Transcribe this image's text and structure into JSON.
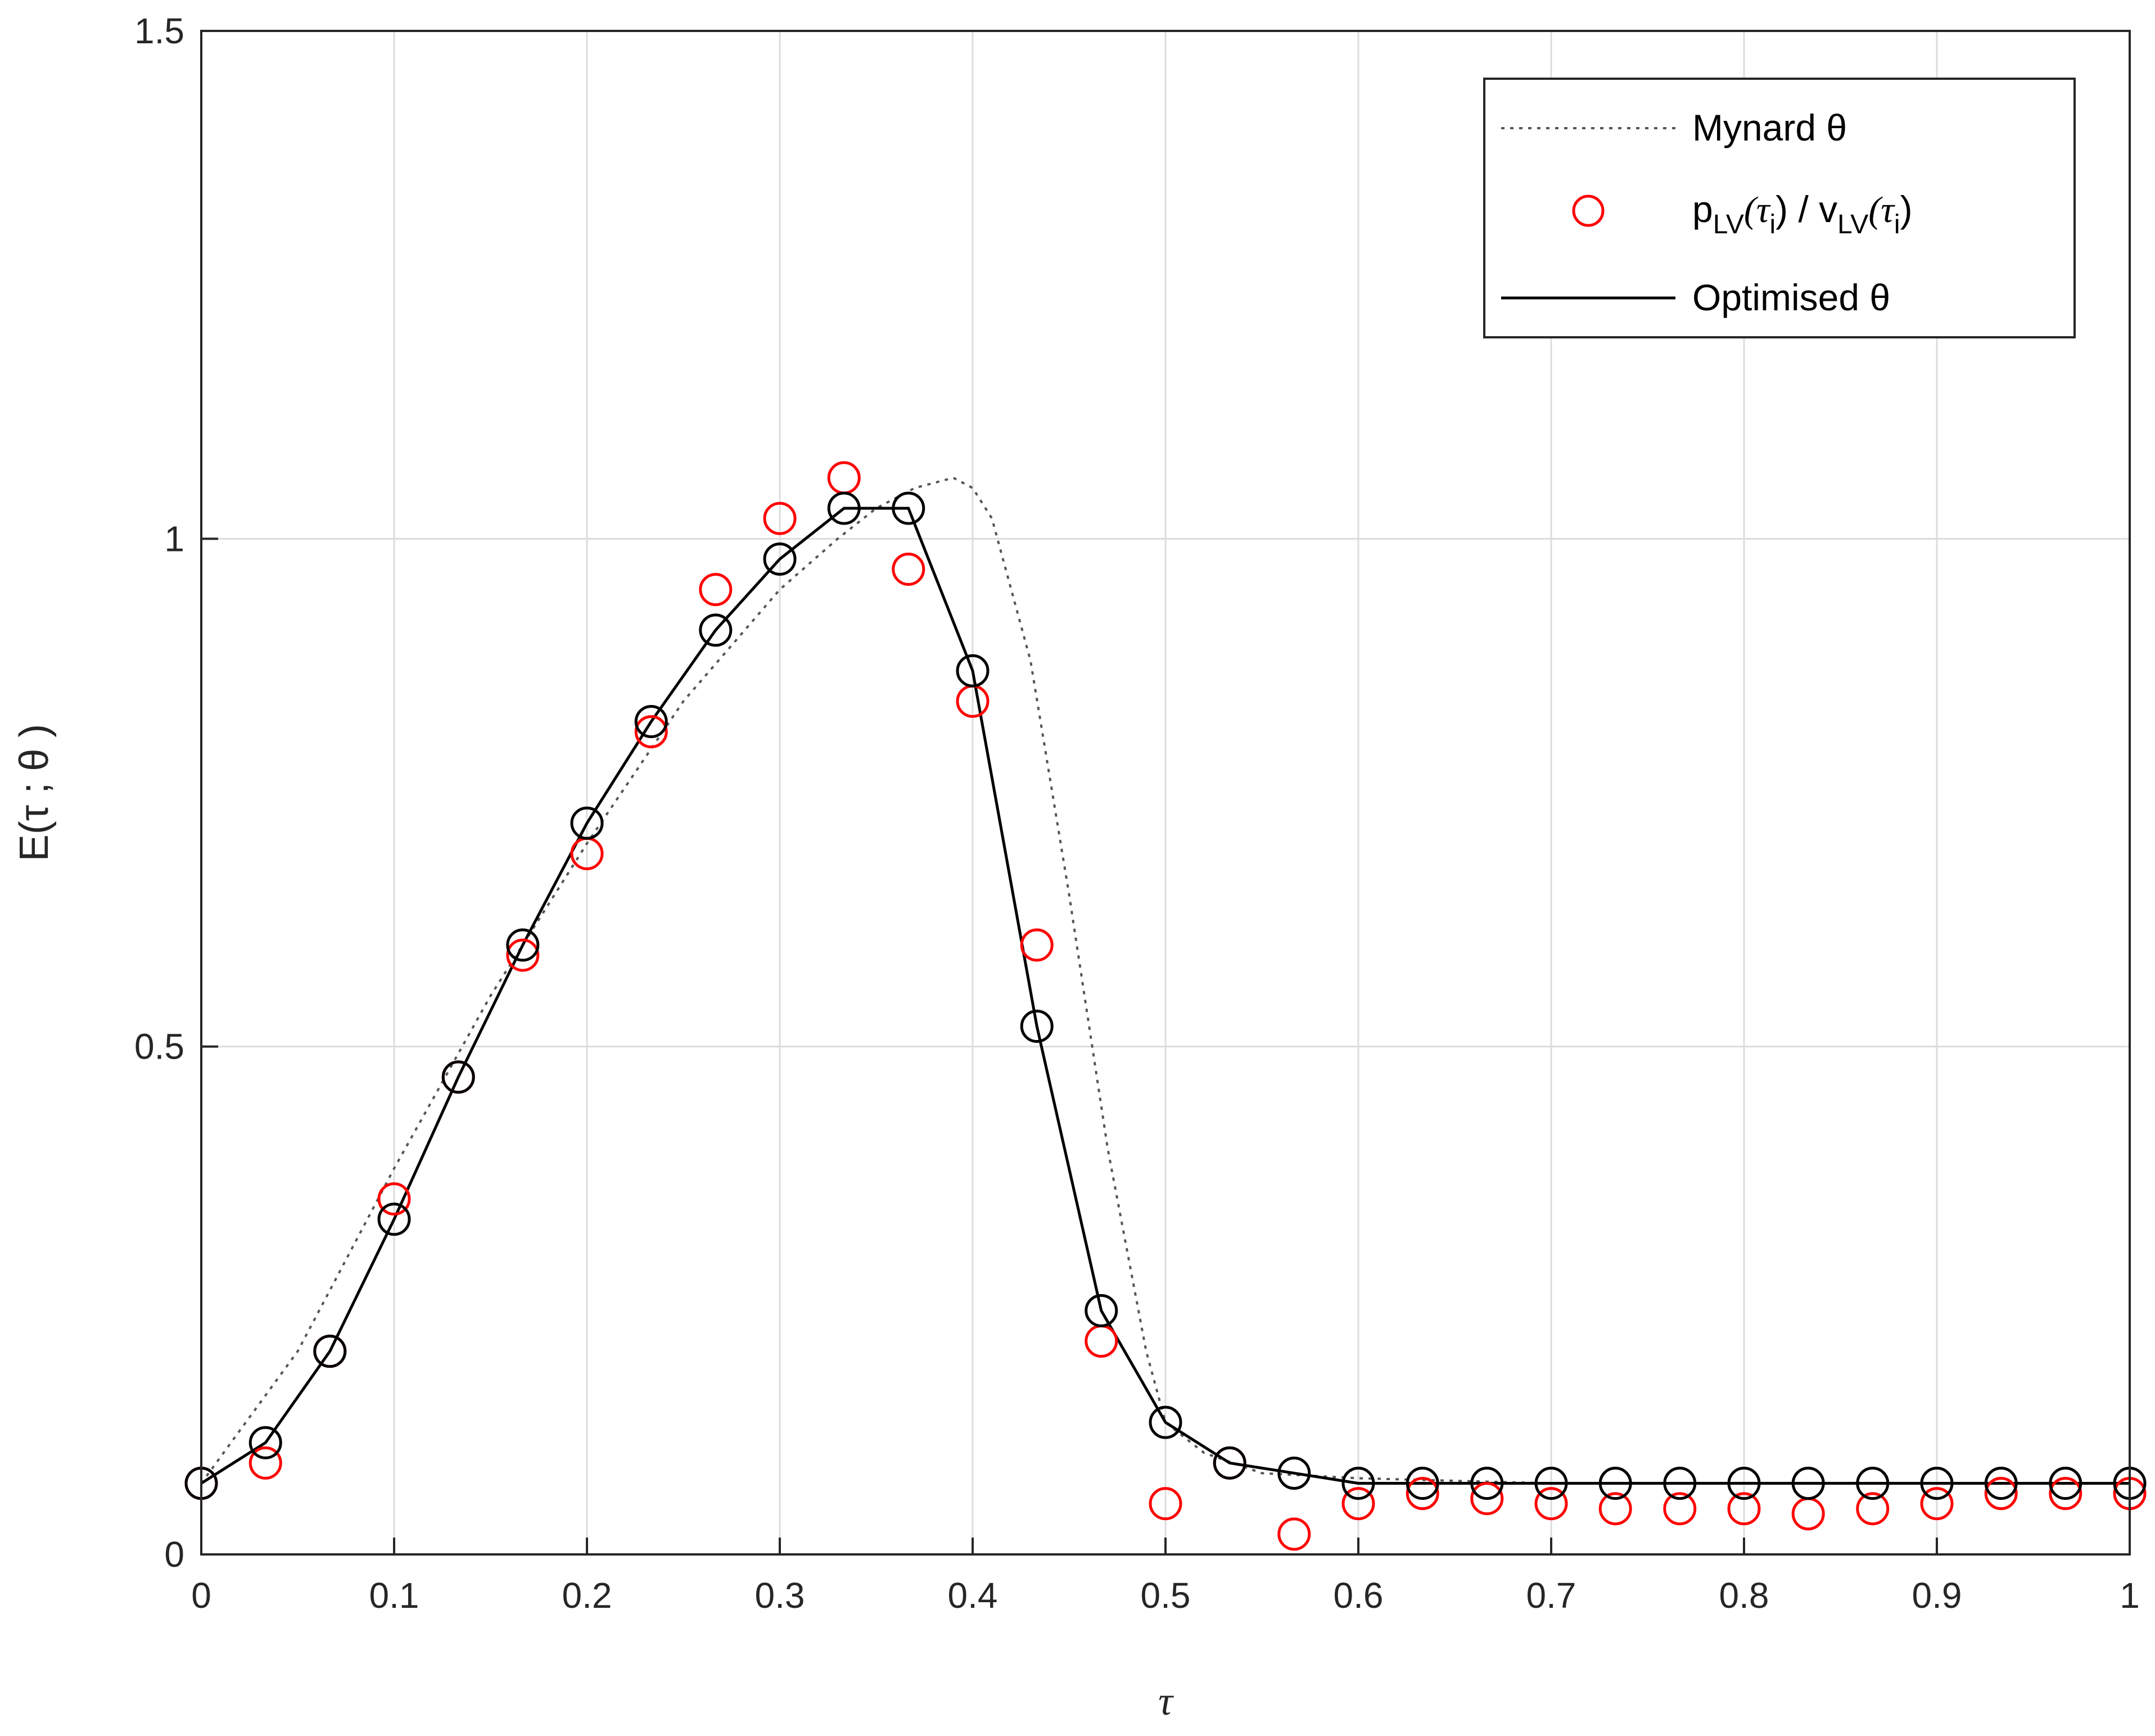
{
  "chart_data": {
    "type": "line",
    "xlabel": "τ",
    "ylabel": "E(τ ; θ )",
    "xlim": [
      0,
      1
    ],
    "ylim": [
      0,
      1.5
    ],
    "xticks": [
      "0",
      "0.1",
      "0.2",
      "0.3",
      "0.4",
      "0.5",
      "0.6",
      "0.7",
      "0.8",
      "0.9",
      "1"
    ],
    "yticks": [
      "0",
      "0.5",
      "1",
      "1.5"
    ],
    "grid": true,
    "legend_position": "top-right",
    "legend": {
      "mynard": "Mynard θ",
      "ratio_p": "p",
      "ratio_sub1": "LV",
      "ratio_mid": "(τ",
      "ratio_sub2": "i",
      "ratio_mid2": ") / v",
      "ratio_sub3": "LV",
      "ratio_mid3": "(τ",
      "ratio_sub4": "i",
      "ratio_end": ")",
      "optimised": "Optimised θ"
    },
    "colors": {
      "mynard": "#555555",
      "ratio": "#ff0000",
      "optimised": "#000000",
      "grid": "#dcdcdc"
    },
    "series": [
      {
        "name": "Mynard θ",
        "style": "dotted",
        "x": [
          0,
          0.05,
          0.1,
          0.15,
          0.2,
          0.25,
          0.3,
          0.33,
          0.35,
          0.37,
          0.39,
          0.4,
          0.41,
          0.43,
          0.45,
          0.47,
          0.49,
          0.5,
          0.52,
          0.55,
          0.6,
          0.7,
          0.8,
          0.9,
          1
        ],
        "y": [
          0.07,
          0.2,
          0.38,
          0.55,
          0.7,
          0.84,
          0.95,
          1.0,
          1.03,
          1.05,
          1.06,
          1.05,
          1.02,
          0.88,
          0.65,
          0.4,
          0.2,
          0.13,
          0.1,
          0.08,
          0.075,
          0.07,
          0.07,
          0.07,
          0.07
        ]
      },
      {
        "name": "p_LV(τ_i) / v_LV(τ_i)",
        "style": "markers",
        "x": [
          0,
          0.0333,
          0.0667,
          0.1,
          0.1333,
          0.1667,
          0.2,
          0.2333,
          0.2667,
          0.3,
          0.3333,
          0.3667,
          0.4,
          0.4333,
          0.4667,
          0.5,
          0.5333,
          0.5667,
          0.6,
          0.6333,
          0.6667,
          0.7,
          0.7333,
          0.7667,
          0.8,
          0.8333,
          0.8667,
          0.9,
          0.9333,
          0.9667,
          1
        ],
        "y": [
          0.07,
          0.09,
          0.2,
          0.35,
          0.47,
          0.59,
          0.69,
          0.81,
          0.95,
          1.02,
          1.06,
          0.97,
          0.84,
          0.6,
          0.21,
          0.05,
          0.09,
          0.02,
          0.05,
          0.06,
          0.055,
          0.05,
          0.045,
          0.045,
          0.045,
          0.04,
          0.045,
          0.05,
          0.06,
          0.06,
          0.06
        ]
      },
      {
        "name": "Optimised θ",
        "style": "solid-markers",
        "x": [
          0,
          0.0333,
          0.0667,
          0.1,
          0.1333,
          0.1667,
          0.2,
          0.2333,
          0.2667,
          0.3,
          0.3333,
          0.3667,
          0.4,
          0.4333,
          0.4667,
          0.5,
          0.5333,
          0.5667,
          0.6,
          0.6333,
          0.6667,
          0.7,
          0.7333,
          0.7667,
          0.8,
          0.8333,
          0.8667,
          0.9,
          0.9333,
          0.9667,
          1
        ],
        "y": [
          0.07,
          0.11,
          0.2,
          0.33,
          0.47,
          0.6,
          0.72,
          0.82,
          0.91,
          0.98,
          1.03,
          1.03,
          0.87,
          0.52,
          0.24,
          0.13,
          0.09,
          0.08,
          0.07,
          0.07,
          0.07,
          0.07,
          0.07,
          0.07,
          0.07,
          0.07,
          0.07,
          0.07,
          0.07,
          0.07,
          0.07
        ]
      }
    ]
  }
}
